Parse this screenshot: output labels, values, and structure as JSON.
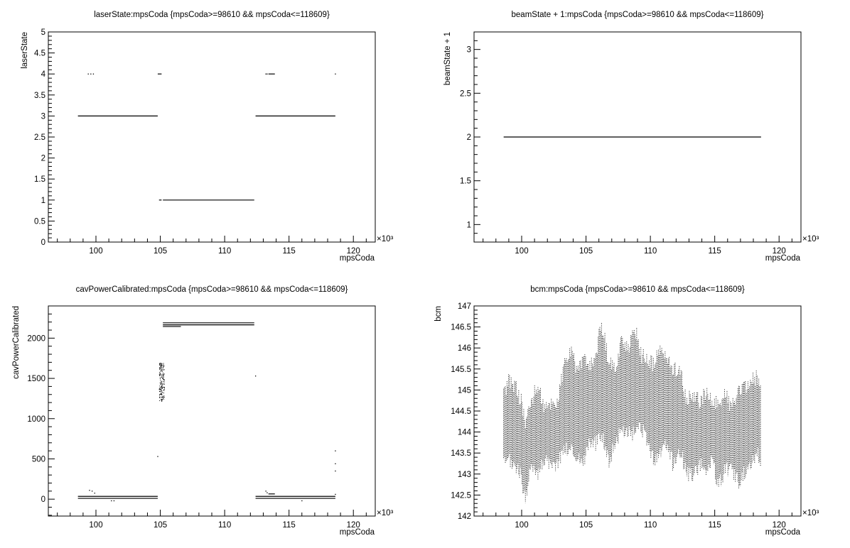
{
  "chart_data": [
    {
      "type": "scatter",
      "title": "laserState:mpsCoda {mpsCoda>=98610 && mpsCoda<=118609}",
      "xlabel": "mpsCoda",
      "ylabel": "laserState",
      "x_multiplier_label": "×10³",
      "xlim": [
        96.3,
        121.7
      ],
      "ylim": [
        0,
        5
      ],
      "xticks": [
        100,
        105,
        110,
        115,
        120
      ],
      "xticklabels": [
        "100",
        "105",
        "110",
        "115",
        "120"
      ],
      "yticks": [
        0,
        0.5,
        1,
        1.5,
        2,
        2.5,
        3,
        3.5,
        4,
        4.5,
        5
      ],
      "yticklabels": [
        "0",
        "0.5",
        "1",
        "1.5",
        "2",
        "2.5",
        "3",
        "3.5",
        "4",
        "4.5",
        "5"
      ],
      "segments": [
        {
          "x": [
            98.6,
            104.8
          ],
          "y": 3
        },
        {
          "x": [
            105.2,
            112.3
          ],
          "y": 1
        },
        {
          "x": [
            112.4,
            118.6
          ],
          "y": 3
        },
        {
          "x": [
            104.9,
            105.1
          ],
          "y": 1
        },
        {
          "x": [
            104.8,
            105.1
          ],
          "y": 4
        },
        {
          "x": [
            113.4,
            113.9
          ],
          "y": 4
        }
      ],
      "points": [
        [
          99.4,
          4
        ],
        [
          99.6,
          4
        ],
        [
          99.8,
          4
        ],
        [
          113.2,
          4
        ],
        [
          113.3,
          4
        ],
        [
          118.6,
          4
        ]
      ]
    },
    {
      "type": "scatter",
      "title": "beamState + 1:mpsCoda {mpsCoda>=98610 && mpsCoda<=118609}",
      "xlabel": "mpsCoda",
      "ylabel": "beamState + 1",
      "x_multiplier_label": "×10³",
      "xlim": [
        96.3,
        121.7
      ],
      "ylim": [
        0.8,
        3.2
      ],
      "xticks": [
        100,
        105,
        110,
        115,
        120
      ],
      "xticklabels": [
        "100",
        "105",
        "110",
        "115",
        "120"
      ],
      "yticks": [
        1,
        1.5,
        2,
        2.5,
        3
      ],
      "yticklabels": [
        "1",
        "1.5",
        "2",
        "2.5",
        "3"
      ],
      "segments": [
        {
          "x": [
            98.6,
            118.6
          ],
          "y": 2
        }
      ],
      "points": []
    },
    {
      "type": "scatter",
      "title": "cavPowerCalibrated:mpsCoda {mpsCoda>=98610 && mpsCoda<=118609}",
      "xlabel": "mpsCoda",
      "ylabel": "cavPowerCalibrated",
      "x_multiplier_label": "×10³",
      "xlim": [
        96.3,
        121.7
      ],
      "ylim": [
        -210,
        2400
      ],
      "xticks": [
        100,
        105,
        110,
        115,
        120
      ],
      "xticklabels": [
        "100",
        "105",
        "110",
        "115",
        "120"
      ],
      "yticks": [
        0,
        500,
        1000,
        1500,
        2000
      ],
      "yticklabels": [
        "0",
        "500",
        "1000",
        "1500",
        "2000"
      ],
      "segments": [
        {
          "x": [
            98.6,
            104.8
          ],
          "y": 35
        },
        {
          "x": [
            98.6,
            104.8
          ],
          "y": 10
        },
        {
          "x": [
            105.2,
            112.3
          ],
          "y": 2190
        },
        {
          "x": [
            105.2,
            112.3
          ],
          "y": 2165
        },
        {
          "x": [
            105.2,
            106.6
          ],
          "y": 2145
        },
        {
          "x": [
            112.4,
            118.6
          ],
          "y": 35
        },
        {
          "x": [
            112.4,
            118.6
          ],
          "y": 10
        },
        {
          "x": [
            113.4,
            113.9
          ],
          "y": 65
        }
      ],
      "points": [
        [
          99.5,
          110
        ],
        [
          99.7,
          100
        ],
        [
          99.9,
          75
        ],
        [
          101.2,
          -20
        ],
        [
          101.4,
          -20
        ],
        [
          104.8,
          530
        ],
        [
          112.4,
          1530
        ],
        [
          113.2,
          100
        ],
        [
          113.3,
          80
        ],
        [
          116.0,
          -20
        ],
        [
          118.6,
          600
        ],
        [
          118.6,
          440
        ],
        [
          118.6,
          350
        ],
        [
          118.6,
          60
        ]
      ],
      "scatter_clusters": [
        {
          "x": [
            104.9,
            105.3
          ],
          "y": [
            1220,
            1700
          ]
        }
      ]
    },
    {
      "type": "scatter",
      "title": "bcm:mpsCoda {mpsCoda>=98610 && mpsCoda<=118609}",
      "xlabel": "mpsCoda",
      "ylabel": "bcm",
      "x_multiplier_label": "×10³",
      "xlim": [
        96.3,
        121.7
      ],
      "ylim": [
        142,
        147
      ],
      "xticks": [
        100,
        105,
        110,
        115,
        120
      ],
      "xticklabels": [
        "100",
        "105",
        "110",
        "115",
        "120"
      ],
      "yticks": [
        142,
        142.5,
        143,
        143.5,
        144,
        144.5,
        145,
        145.5,
        146,
        146.5,
        147
      ],
      "yticklabels": [
        "142",
        "142.5",
        "143",
        "143.5",
        "144",
        "144.5",
        "145",
        "145.5",
        "146",
        "146.5",
        "147"
      ],
      "band": {
        "x": [
          98.6,
          99.0,
          99.5,
          100.0,
          100.3,
          100.8,
          101.3,
          101.8,
          102.3,
          102.8,
          103.3,
          103.8,
          104.3,
          104.8,
          105.3,
          105.8,
          106.2,
          106.8,
          107.3,
          107.8,
          108.3,
          108.8,
          109.3,
          109.8,
          110.3,
          110.8,
          111.3,
          111.8,
          112.3,
          112.8,
          113.3,
          113.8,
          114.3,
          114.8,
          115.3,
          115.8,
          116.3,
          116.8,
          117.3,
          117.8,
          118.3,
          118.6
        ],
        "low": [
          143.2,
          143.3,
          143.2,
          142.9,
          142.3,
          143.3,
          143.0,
          143.4,
          143.1,
          143.3,
          143.6,
          143.6,
          143.4,
          143.3,
          143.8,
          143.7,
          144.0,
          143.3,
          143.8,
          144.0,
          144.0,
          143.9,
          144.1,
          143.7,
          143.3,
          143.5,
          143.7,
          143.2,
          143.6,
          143.0,
          143.0,
          143.2,
          143.1,
          143.3,
          142.7,
          143.1,
          143.1,
          142.8,
          143.0,
          143.3,
          143.5,
          143.3
        ],
        "high": [
          144.9,
          145.2,
          145.1,
          144.7,
          144.2,
          144.8,
          145.1,
          144.5,
          144.7,
          144.7,
          145.6,
          145.9,
          145.5,
          145.7,
          145.5,
          145.9,
          146.6,
          145.6,
          145.5,
          146.3,
          145.9,
          146.5,
          145.8,
          145.7,
          145.6,
          146.0,
          145.7,
          145.5,
          145.5,
          144.7,
          144.9,
          144.7,
          144.9,
          144.7,
          144.7,
          144.9,
          144.6,
          144.9,
          145.0,
          145.2,
          145.3,
          144.9
        ]
      }
    }
  ]
}
